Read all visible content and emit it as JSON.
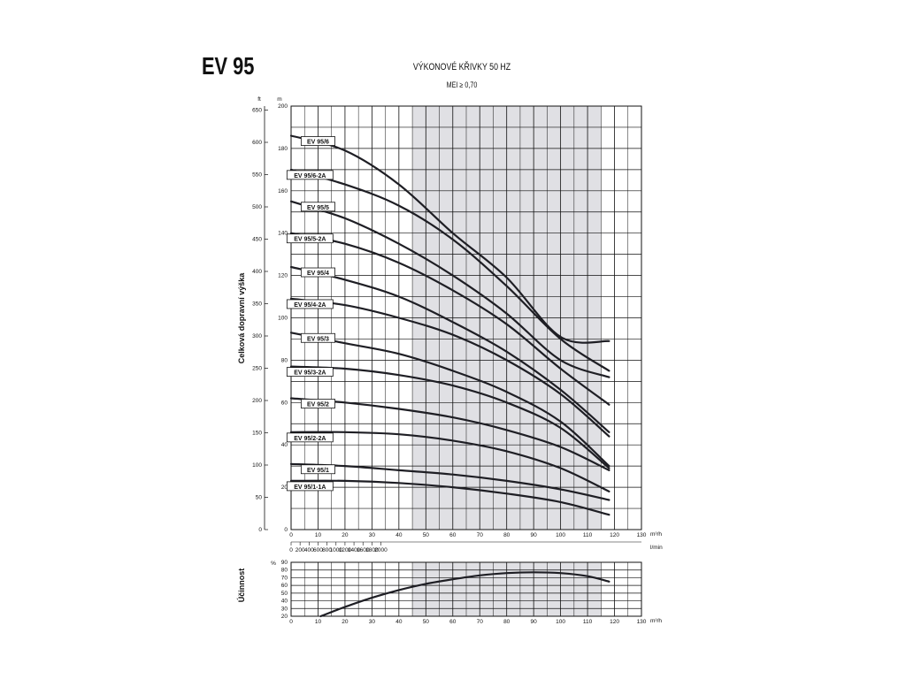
{
  "header": {
    "product": "EV 95",
    "title": "VÝKONOVÉ KŘIVKY 50 HZ",
    "subtitle": "MEI ≥ 0,70"
  },
  "chart_data": [
    {
      "type": "line",
      "ylabel": "Celková dopravní výška",
      "y_units": [
        "ft",
        "m"
      ],
      "ylim": [
        0,
        200
      ],
      "y_ticks_m": [
        0,
        20,
        40,
        60,
        80,
        100,
        120,
        140,
        160,
        180,
        200
      ],
      "y_ticks_ft": [
        0,
        50,
        100,
        150,
        200,
        250,
        300,
        350,
        400,
        450,
        500,
        550,
        600,
        650
      ],
      "x_units": [
        "m³/h",
        "l/min"
      ],
      "xlim": [
        0,
        130
      ],
      "x_ticks": [
        0,
        10,
        20,
        30,
        40,
        50,
        60,
        70,
        80,
        90,
        100,
        110,
        120,
        130
      ],
      "x_ticks_lmin": [
        0,
        200,
        400,
        600,
        800,
        1000,
        1200,
        1400,
        1600,
        1800,
        2000
      ],
      "shaded_range": [
        45,
        115
      ],
      "grid": true,
      "series": [
        {
          "name": "EV 95/6",
          "x": [
            0,
            20,
            40,
            60,
            80,
            100,
            118
          ],
          "y": [
            186,
            179,
            163,
            140,
            119,
            91,
            89
          ]
        },
        {
          "name": "EV 95/6-2A",
          "x": [
            0,
            20,
            40,
            60,
            80,
            100,
            118
          ],
          "y": [
            170,
            163,
            153,
            137,
            115,
            90,
            75
          ]
        },
        {
          "name": "EV 95/5",
          "x": [
            0,
            20,
            40,
            60,
            80,
            100,
            118
          ],
          "y": [
            155,
            147,
            135,
            120,
            102,
            80,
            72
          ]
        },
        {
          "name": "EV 95/5-2A",
          "x": [
            0,
            20,
            40,
            60,
            80,
            100,
            118
          ],
          "y": [
            140,
            135,
            126,
            113,
            97,
            76,
            59
          ]
        },
        {
          "name": "EV 95/4",
          "x": [
            0,
            20,
            40,
            60,
            80,
            100,
            118
          ],
          "y": [
            124,
            118,
            110,
            98,
            84,
            66,
            46
          ]
        },
        {
          "name": "EV 95/4-2A",
          "x": [
            0,
            20,
            40,
            60,
            80,
            100,
            118
          ],
          "y": [
            109,
            106,
            100,
            92,
            80,
            64,
            44
          ]
        },
        {
          "name": "EV 95/3",
          "x": [
            0,
            20,
            40,
            60,
            80,
            100,
            118
          ],
          "y": [
            93,
            88,
            83,
            75,
            65,
            51,
            30
          ]
        },
        {
          "name": "EV 95/3-2A",
          "x": [
            0,
            20,
            40,
            60,
            80,
            100,
            118
          ],
          "y": [
            77,
            76,
            73,
            68,
            60,
            48,
            29
          ]
        },
        {
          "name": "EV 95/2",
          "x": [
            0,
            20,
            40,
            60,
            80,
            100,
            118
          ],
          "y": [
            62,
            60,
            57,
            53,
            47,
            39,
            28
          ]
        },
        {
          "name": "EV 95/2-2A",
          "x": [
            0,
            20,
            40,
            60,
            80,
            100,
            118
          ],
          "y": [
            46,
            46,
            45,
            42,
            37,
            29,
            18
          ]
        },
        {
          "name": "EV 95/1",
          "x": [
            0,
            20,
            40,
            60,
            80,
            100,
            118
          ],
          "y": [
            31,
            30,
            28,
            26,
            23,
            19,
            14
          ]
        },
        {
          "name": "EV 95/1-1A",
          "x": [
            0,
            20,
            40,
            60,
            80,
            100,
            118
          ],
          "y": [
            23,
            23,
            22,
            20,
            17,
            13,
            7
          ]
        }
      ]
    },
    {
      "type": "line",
      "ylabel": "Účinnost",
      "y_unit": "%",
      "ylim": [
        20,
        90
      ],
      "y_ticks": [
        20,
        30,
        40,
        50,
        60,
        70,
        80,
        90
      ],
      "x_unit": "m³/h",
      "xlim": [
        0,
        130
      ],
      "x_ticks": [
        0,
        10,
        20,
        30,
        40,
        50,
        60,
        70,
        80,
        90,
        100,
        110,
        120,
        130
      ],
      "shaded_range": [
        45,
        115
      ],
      "grid": true,
      "series": [
        {
          "x": [
            11,
            20,
            30,
            40,
            50,
            60,
            70,
            80,
            90,
            100,
            110,
            118
          ],
          "y": [
            20,
            32,
            44,
            54,
            62,
            68,
            73,
            76,
            77,
            76,
            72,
            65
          ]
        }
      ]
    }
  ]
}
